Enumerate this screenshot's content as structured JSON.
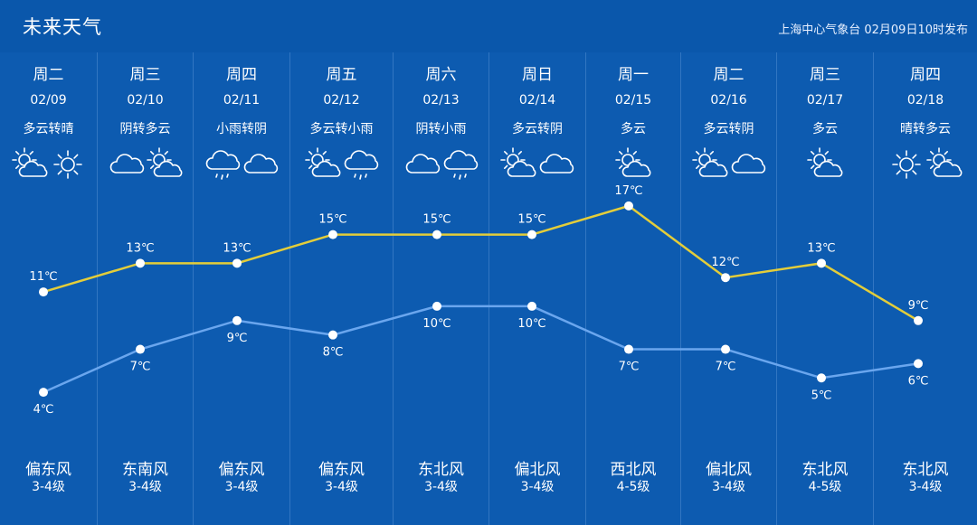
{
  "header": {
    "title": "未来天气",
    "publisher": "上海中心气象台 02月09日10时发布"
  },
  "days": [
    {
      "weekday": "周二",
      "date": "02/09",
      "desc": "多云转晴",
      "icons": [
        "partly-cloudy-icon",
        "sun-icon"
      ],
      "wind": "偏东风",
      "level": "3-4级"
    },
    {
      "weekday": "周三",
      "date": "02/10",
      "desc": "阴转多云",
      "icons": [
        "cloud-icon",
        "partly-cloudy-icon"
      ],
      "wind": "东南风",
      "level": "3-4级"
    },
    {
      "weekday": "周四",
      "date": "02/11",
      "desc": "小雨转阴",
      "icons": [
        "rain-icon",
        "cloud-icon"
      ],
      "wind": "偏东风",
      "level": "3-4级"
    },
    {
      "weekday": "周五",
      "date": "02/12",
      "desc": "多云转小雨",
      "icons": [
        "partly-cloudy-icon",
        "rain-icon"
      ],
      "wind": "偏东风",
      "level": "3-4级"
    },
    {
      "weekday": "周六",
      "date": "02/13",
      "desc": "阴转小雨",
      "icons": [
        "cloud-icon",
        "rain-icon"
      ],
      "wind": "东北风",
      "level": "3-4级"
    },
    {
      "weekday": "周日",
      "date": "02/14",
      "desc": "多云转阴",
      "icons": [
        "partly-cloudy-icon",
        "cloud-icon"
      ],
      "wind": "偏北风",
      "level": "3-4级"
    },
    {
      "weekday": "周一",
      "date": "02/15",
      "desc": "多云",
      "icons": [
        "partly-cloudy-icon"
      ],
      "wind": "西北风",
      "level": "4-5级"
    },
    {
      "weekday": "周二",
      "date": "02/16",
      "desc": "多云转阴",
      "icons": [
        "partly-cloudy-icon",
        "cloud-icon"
      ],
      "wind": "偏北风",
      "level": "3-4级"
    },
    {
      "weekday": "周三",
      "date": "02/17",
      "desc": "多云",
      "icons": [
        "partly-cloudy-icon"
      ],
      "wind": "东北风",
      "level": "4-5级"
    },
    {
      "weekday": "周四",
      "date": "02/18",
      "desc": "晴转多云",
      "icons": [
        "sun-icon",
        "partly-cloudy-icon"
      ],
      "wind": "东北风",
      "level": "3-4级"
    }
  ],
  "chart_data": {
    "type": "line",
    "categories": [
      "02/09",
      "02/10",
      "02/11",
      "02/12",
      "02/13",
      "02/14",
      "02/15",
      "02/16",
      "02/17",
      "02/18"
    ],
    "unit": "℃",
    "series": [
      {
        "key": "high",
        "values": [
          11,
          13,
          13,
          15,
          15,
          15,
          17,
          12,
          13,
          9
        ],
        "color": "#e3cd3a"
      },
      {
        "key": "low",
        "values": [
          4,
          7,
          9,
          8,
          10,
          10,
          7,
          7,
          5,
          6
        ],
        "color": "#6aa6ee"
      }
    ],
    "ylim": [
      3,
      18
    ]
  },
  "colors": {
    "background": "#0d5bb0",
    "high_line": "#e3cd3a",
    "low_line": "#6aa6ee",
    "text": "#ffffff"
  }
}
